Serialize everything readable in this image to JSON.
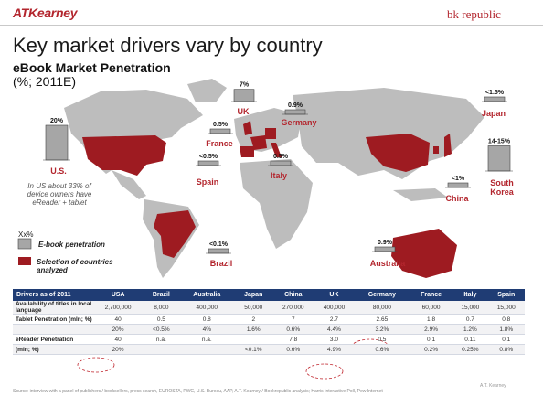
{
  "header": {
    "logo_left": "ATKearney",
    "logo_right": "bk republic",
    "title": "Key market drivers vary by country",
    "subtitle": "eBook Market Penetration",
    "units": "(%; 2011E)"
  },
  "chart_data": {
    "type": "bar",
    "title": "eBook Market Penetration",
    "categories": [
      "U.S.",
      "UK",
      "Germany",
      "France",
      "Spain",
      "Italy",
      "Brazil",
      "Japan",
      "South Korea",
      "China",
      "Australia"
    ],
    "value_labels": [
      "20%",
      "7%",
      "0.9%",
      "0.5%",
      "<0.5%",
      "0.5%",
      "<0.1%",
      "<1.5%",
      "14-15%",
      "<1%",
      "0.9%"
    ],
    "values": [
      20,
      7,
      0.9,
      0.5,
      0.5,
      0.5,
      0.1,
      1.5,
      14.5,
      1,
      0.9
    ],
    "selected_countries": [
      "U.S.",
      "UK",
      "Germany",
      "France",
      "Spain",
      "Italy",
      "Brazil",
      "Japan",
      "South Korea",
      "China",
      "Australia"
    ],
    "colors": {
      "bar": "#a6a6a6",
      "country_selected": "#9e1b21",
      "land": "#bdbdbd",
      "label": "#b3262e"
    }
  },
  "legend": {
    "bar_sample_label": "Xx%",
    "bar_label": "E-book penetration",
    "region_label": "Selection of countries analyzed"
  },
  "us_note": "In US about 33% of device owners have eReader + tablet",
  "table": {
    "columns": [
      "Drivers as of 2011",
      "USA",
      "Brazil",
      "Australia",
      "Japan",
      "China",
      "UK",
      "Germany",
      "France",
      "Italy",
      "Spain"
    ],
    "rows": [
      {
        "label": "Availability of titles in local language",
        "cells": [
          "2,700,000",
          "8,000",
          "400,000",
          "50,000",
          "270,000",
          "400,000",
          "80,000",
          "60,000",
          "15,000",
          "15,000"
        ]
      },
      {
        "label": "Tablet Penetration (mln; %)",
        "cells": [
          "40",
          "0.5",
          "0.8",
          "2",
          "7",
          "2.7",
          "2.65",
          "1.8",
          "0.7",
          "0.8"
        ]
      },
      {
        "label": "",
        "cells": [
          "20%",
          "<0.5%",
          "4%",
          "1.6%",
          "0.6%",
          "4.4%",
          "3.2%",
          "2.9%",
          "1.2%",
          "1.8%"
        ]
      },
      {
        "label": "eReader Penetration",
        "cells": [
          "40",
          "n.a.",
          "n.a.",
          "",
          "7.8",
          "3.0",
          "0.5",
          "0.1",
          "0.11",
          "0.1"
        ]
      },
      {
        "label": "(mln; %)",
        "cells": [
          "20%",
          "",
          "",
          "<0.1%",
          "0.6%",
          "4.9%",
          "0.6%",
          "0.2%",
          "0.25%",
          "0.8%"
        ]
      }
    ]
  },
  "footer": {
    "source": "Source: interview with a panel of publishers / booksellers, press search, EUROSTA, PWC, U.S. Bureau, AAP, A.T. Kearney / Bookrepublic analysis; Harris Interactive Poll, Pew Internet",
    "copyright": "A.T. Kearney"
  }
}
